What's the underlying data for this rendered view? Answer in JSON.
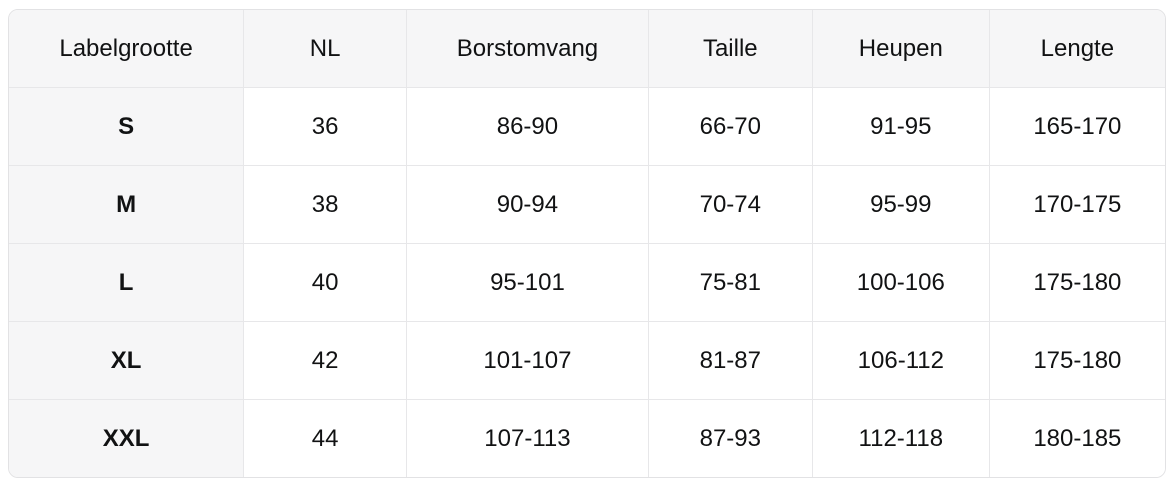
{
  "colors": {
    "header_background": "#f6f6f7",
    "first_column_background": "#f6f6f7",
    "border": "#e5e5e7",
    "text": "#111213",
    "cell_background": "#ffffff"
  },
  "size_chart": {
    "columns": {
      "label_size": "Labelgrootte",
      "nl": "NL",
      "chest": "Borstomvang",
      "waist": "Taille",
      "hips": "Heupen",
      "length": "Lengte"
    },
    "rows": [
      {
        "size": "S",
        "nl": "36",
        "chest": "86-90",
        "waist": "66-70",
        "hips": "91-95",
        "length": "165-170"
      },
      {
        "size": "M",
        "nl": "38",
        "chest": "90-94",
        "waist": "70-74",
        "hips": "95-99",
        "length": "170-175"
      },
      {
        "size": "L",
        "nl": "40",
        "chest": "95-101",
        "waist": "75-81",
        "hips": "100-106",
        "length": "175-180"
      },
      {
        "size": "XL",
        "nl": "42",
        "chest": "101-107",
        "waist": "81-87",
        "hips": "106-112",
        "length": "175-180"
      },
      {
        "size": "XXL",
        "nl": "44",
        "chest": "107-113",
        "waist": "87-93",
        "hips": "112-118",
        "length": "180-185"
      }
    ]
  }
}
